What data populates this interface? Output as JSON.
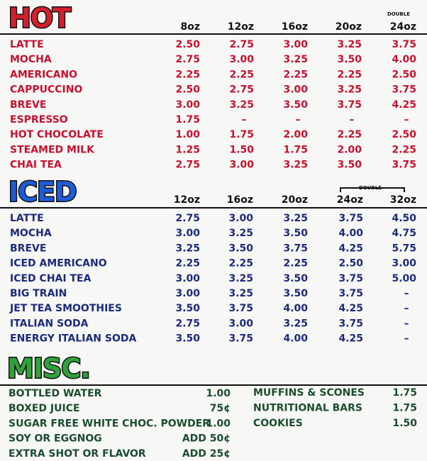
{
  "hot": {
    "title": "HOT",
    "double_label": "DOUBLE",
    "sizes": [
      "8oz",
      "12oz",
      "16oz",
      "20oz",
      "24oz"
    ],
    "rows": [
      {
        "name": "LATTE",
        "prices": [
          "2.50",
          "2.75",
          "3.00",
          "3.25",
          "3.75"
        ]
      },
      {
        "name": "MOCHA",
        "prices": [
          "2.75",
          "3.00",
          "3.25",
          "3.50",
          "4.00"
        ]
      },
      {
        "name": "AMERICANO",
        "prices": [
          "2.25",
          "2.25",
          "2.25",
          "2.25",
          "2.50"
        ]
      },
      {
        "name": "CAPPUCCINO",
        "prices": [
          "2.50",
          "2.75",
          "3.00",
          "3.25",
          "3.75"
        ]
      },
      {
        "name": "BREVE",
        "prices": [
          "3.00",
          "3.25",
          "3.50",
          "3.75",
          "4.25"
        ]
      },
      {
        "name": "ESPRESSO",
        "prices": [
          "1.75",
          "–",
          "–",
          "–",
          "–"
        ]
      },
      {
        "name": "HOT CHOCOLATE",
        "prices": [
          "1.00",
          "1.75",
          "2.00",
          "2.25",
          "2.50"
        ]
      },
      {
        "name": "STEAMED MILK",
        "prices": [
          "1.25",
          "1.50",
          "1.75",
          "2.00",
          "2.25"
        ]
      },
      {
        "name": "CHAI TEA",
        "prices": [
          "2.75",
          "3.00",
          "3.25",
          "3.50",
          "3.75"
        ]
      }
    ]
  },
  "iced": {
    "title": "ICED",
    "double_label": "DOUBLE",
    "sizes": [
      "12oz",
      "16oz",
      "20oz",
      "24oz",
      "32oz"
    ],
    "rows": [
      {
        "name": "LATTE",
        "prices": [
          "2.75",
          "3.00",
          "3.25",
          "3.75",
          "4.50"
        ]
      },
      {
        "name": "MOCHA",
        "prices": [
          "3.00",
          "3.25",
          "3.50",
          "4.00",
          "4.75"
        ]
      },
      {
        "name": "BREVE",
        "prices": [
          "3.25",
          "3.50",
          "3.75",
          "4.25",
          "5.75"
        ]
      },
      {
        "name": "ICED AMERICANO",
        "prices": [
          "2.25",
          "2.25",
          "2.25",
          "2.50",
          "3.00"
        ]
      },
      {
        "name": "ICED CHAI TEA",
        "prices": [
          "3.00",
          "3.25",
          "3.50",
          "3.75",
          "5.00"
        ]
      },
      {
        "name": "BIG TRAIN",
        "prices": [
          "3.00",
          "3.25",
          "3.50",
          "3.75",
          "–"
        ]
      },
      {
        "name": "JET TEA SMOOTHIES",
        "prices": [
          "3.50",
          "3.75",
          "4.00",
          "4.25",
          "–"
        ]
      },
      {
        "name": "ITALIAN SODA",
        "prices": [
          "2.75",
          "3.00",
          "3.25",
          "3.75",
          "–"
        ]
      },
      {
        "name": "ENERGY ITALIAN SODA",
        "prices": [
          "3.50",
          "3.75",
          "4.00",
          "4.25",
          "–"
        ]
      }
    ]
  },
  "misc": {
    "title": "MISC.",
    "left": [
      {
        "name": "BOTTLED WATER",
        "price": "1.00"
      },
      {
        "name": "BOXED JUICE",
        "price": "75¢"
      },
      {
        "name": "SUGAR FREE WHITE CHOC. POWDER",
        "price": "1.00"
      },
      {
        "name": "SOY OR EGGNOG",
        "price": "ADD 50¢"
      },
      {
        "name": "EXTRA SHOT OR FLAVOR",
        "price": "ADD 25¢"
      }
    ],
    "right": [
      {
        "name": "MUFFINS & SCONES",
        "price": "1.75"
      },
      {
        "name": "NUTRITIONAL BARS",
        "price": "1.75"
      },
      {
        "name": "COOKIES",
        "price": "1.50"
      }
    ]
  }
}
